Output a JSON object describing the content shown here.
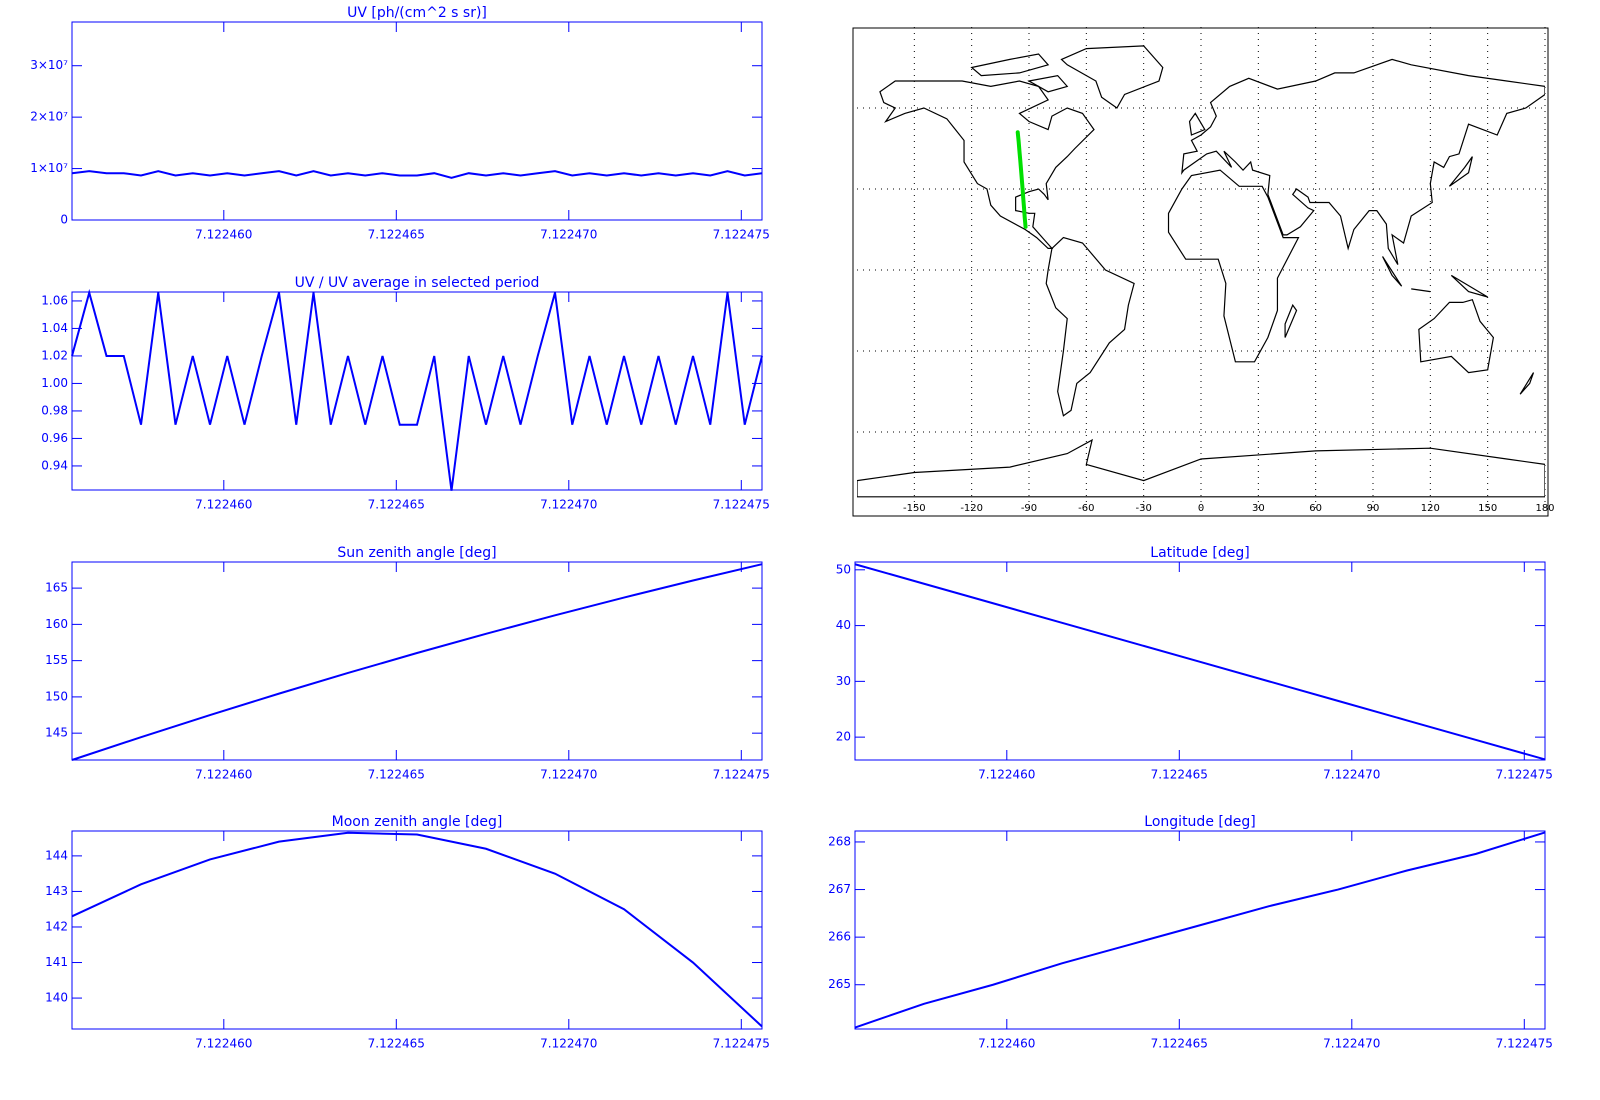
{
  "chart_data": [
    {
      "type": "line",
      "title": "UV [ph/(cm^2 s sr)]",
      "color": "#0000ff",
      "x": [
        7.1224556,
        7.1224561,
        7.1224566,
        7.1224571,
        7.1224576,
        7.1224581,
        7.1224586,
        7.1224591,
        7.1224596,
        7.1224601,
        7.1224606,
        7.1224611,
        7.1224616,
        7.1224621,
        7.1224626,
        7.1224631,
        7.1224636,
        7.1224641,
        7.1224646,
        7.1224651,
        7.1224656,
        7.1224661,
        7.1224666,
        7.1224671,
        7.1224676,
        7.1224681,
        7.1224686,
        7.1224691,
        7.1224696,
        7.1224701,
        7.1224706,
        7.1224711,
        7.1224716,
        7.1224721,
        7.1224726,
        7.1224731,
        7.1224736,
        7.1224741,
        7.1224746,
        7.1224751,
        7.1224756
      ],
      "values": [
        9100000,
        9500000,
        9100000,
        9100000,
        8650000,
        9500000,
        8650000,
        9100000,
        8650000,
        9100000,
        8650000,
        9100000,
        9500000,
        8650000,
        9500000,
        8650000,
        9100000,
        8650000,
        9100000,
        8650000,
        8650000,
        9100000,
        8200000,
        9100000,
        8650000,
        9100000,
        8650000,
        9100000,
        9500000,
        8650000,
        9100000,
        8650000,
        9100000,
        8650000,
        9100000,
        8650000,
        9100000,
        8650000,
        9500000,
        8650000,
        9100000
      ],
      "xlim": [
        7.1224556,
        7.1224756
      ],
      "ylim": [
        0,
        38500000
      ],
      "xticks": [
        {
          "value": 7.12246,
          "label": "7.122460"
        },
        {
          "value": 7.122465,
          "label": "7.122465"
        },
        {
          "value": 7.12247,
          "label": "7.122470"
        },
        {
          "value": 7.122475,
          "label": "7.122475"
        }
      ],
      "yticks": [
        0,
        {
          "value": 10000000,
          "label": "1×10⁷"
        },
        {
          "value": 20000000,
          "label": "2×10⁷"
        },
        {
          "value": 30000000,
          "label": "3×10⁷"
        }
      ]
    },
    {
      "type": "line",
      "title": "UV / UV average in selected period",
      "color": "#0000ff",
      "x": [
        7.1224556,
        7.1224561,
        7.1224566,
        7.1224571,
        7.1224576,
        7.1224581,
        7.1224586,
        7.1224591,
        7.1224596,
        7.1224601,
        7.1224606,
        7.1224611,
        7.1224616,
        7.1224621,
        7.1224626,
        7.1224631,
        7.1224636,
        7.1224641,
        7.1224646,
        7.1224651,
        7.1224656,
        7.1224661,
        7.1224666,
        7.1224671,
        7.1224676,
        7.1224681,
        7.1224686,
        7.1224691,
        7.1224696,
        7.1224701,
        7.1224706,
        7.1224711,
        7.1224716,
        7.1224721,
        7.1224726,
        7.1224731,
        7.1224736,
        7.1224741,
        7.1224746,
        7.1224751,
        7.1224756
      ],
      "values": [
        1.02,
        1.066,
        1.02,
        1.02,
        0.97,
        1.066,
        0.97,
        1.02,
        0.97,
        1.02,
        0.97,
        1.02,
        1.066,
        0.97,
        1.066,
        0.97,
        1.02,
        0.97,
        1.02,
        0.97,
        0.97,
        1.02,
        0.922,
        1.02,
        0.97,
        1.02,
        0.97,
        1.02,
        1.066,
        0.97,
        1.02,
        0.97,
        1.02,
        0.97,
        1.02,
        0.97,
        1.02,
        0.97,
        1.066,
        0.97,
        1.02
      ],
      "xlim": [
        7.1224556,
        7.1224756
      ],
      "ylim": [
        0.9225,
        1.0665
      ],
      "xticks": [
        {
          "value": 7.12246,
          "label": "7.122460"
        },
        {
          "value": 7.122465,
          "label": "7.122465"
        },
        {
          "value": 7.12247,
          "label": "7.122470"
        },
        {
          "value": 7.122475,
          "label": "7.122475"
        }
      ],
      "yticks": [
        0.94,
        0.96,
        0.98,
        {
          "value": 1,
          "label": "1.00"
        },
        1.02,
        1.04,
        1.06
      ]
    },
    {
      "type": "map",
      "xlim": [
        -180,
        180
      ],
      "ylim": [
        -90,
        90
      ],
      "track_color": "#00e000",
      "grid": true,
      "xticks": [
        -150,
        -120,
        -90,
        -60,
        -30,
        0,
        30,
        60,
        90,
        120,
        150,
        180
      ],
      "yticks": [
        -60,
        -30,
        0,
        30,
        60
      ]
    },
    {
      "type": "line",
      "title": "Sun zenith angle [deg]",
      "color": "#0000ff",
      "x": [
        7.1224556,
        7.1224576,
        7.1224596,
        7.1224616,
        7.1224636,
        7.1224656,
        7.1224676,
        7.1224696,
        7.1224716,
        7.1224736,
        7.1224756
      ],
      "values": [
        141.3,
        144.45,
        147.5,
        150.45,
        153.3,
        156.05,
        158.7,
        161.25,
        163.7,
        166.05,
        168.3
      ],
      "xlim": [
        7.1224556,
        7.1224756
      ],
      "ylim": [
        141.3,
        168.6
      ],
      "xticks": [
        {
          "value": 7.12246,
          "label": "7.122460"
        },
        {
          "value": 7.122465,
          "label": "7.122465"
        },
        {
          "value": 7.12247,
          "label": "7.122470"
        },
        {
          "value": 7.122475,
          "label": "7.122475"
        }
      ],
      "yticks": [
        145,
        150,
        155,
        160,
        165
      ]
    },
    {
      "type": "line",
      "title": "Latitude [deg]",
      "color": "#0000ff",
      "x": [
        7.1224556,
        7.1224576,
        7.1224596,
        7.1224616,
        7.1224636,
        7.1224656,
        7.1224676,
        7.1224696,
        7.1224716,
        7.1224736,
        7.1224756
      ],
      "values": [
        51,
        47.5,
        44,
        40.5,
        37,
        33.5,
        30,
        26.5,
        23,
        19.5,
        16
      ],
      "xlim": [
        7.1224556,
        7.1224756
      ],
      "ylim": [
        15.9,
        51.4
      ],
      "xticks": [
        {
          "value": 7.12246,
          "label": "7.122460"
        },
        {
          "value": 7.122465,
          "label": "7.122465"
        },
        {
          "value": 7.12247,
          "label": "7.122470"
        },
        {
          "value": 7.122475,
          "label": "7.122475"
        }
      ],
      "yticks": [
        20,
        30,
        40,
        50
      ]
    },
    {
      "type": "line",
      "title": "Moon zenith angle [deg]",
      "color": "#0000ff",
      "x": [
        7.1224556,
        7.1224576,
        7.1224596,
        7.1224616,
        7.1224636,
        7.1224656,
        7.1224676,
        7.1224696,
        7.1224716,
        7.1224736,
        7.1224756
      ],
      "values": [
        142.3,
        143.2,
        143.9,
        144.4,
        144.65,
        144.6,
        144.2,
        143.5,
        142.5,
        141.0,
        139.2
      ],
      "xlim": [
        7.1224556,
        7.1224756
      ],
      "ylim": [
        139.13,
        144.7
      ],
      "xticks": [
        {
          "value": 7.12246,
          "label": "7.122460"
        },
        {
          "value": 7.122465,
          "label": "7.122465"
        },
        {
          "value": 7.12247,
          "label": "7.122470"
        },
        {
          "value": 7.122475,
          "label": "7.122475"
        }
      ],
      "yticks": [
        140,
        141,
        142,
        143,
        144
      ]
    },
    {
      "type": "line",
      "title": "Longitude [deg]",
      "color": "#0000ff",
      "x": [
        7.1224556,
        7.1224576,
        7.1224596,
        7.1224616,
        7.1224636,
        7.1224656,
        7.1224676,
        7.1224696,
        7.1224716,
        7.1224736,
        7.1224756
      ],
      "values": [
        264.1,
        264.6,
        265.0,
        265.45,
        265.85,
        266.25,
        266.65,
        267.0,
        267.4,
        267.75,
        268.2
      ],
      "xlim": [
        7.1224556,
        7.1224756
      ],
      "ylim": [
        264.07,
        268.23
      ],
      "xticks": [
        {
          "value": 7.12246,
          "label": "7.122460"
        },
        {
          "value": 7.122465,
          "label": "7.122465"
        },
        {
          "value": 7.12247,
          "label": "7.122470"
        },
        {
          "value": 7.122475,
          "label": "7.122475"
        }
      ],
      "yticks": [
        265,
        266,
        267,
        268
      ]
    }
  ]
}
